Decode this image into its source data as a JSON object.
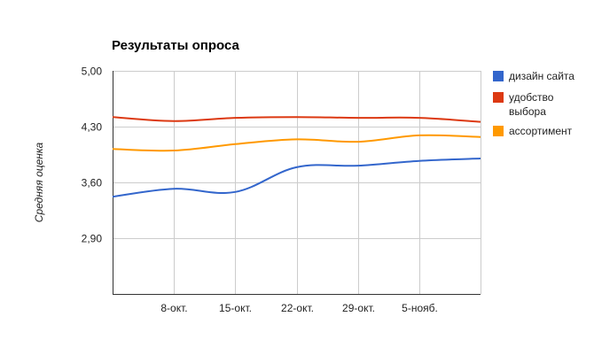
{
  "chart_data": {
    "type": "line",
    "title": "Результаты опроса",
    "ylabel": "Средняя оценка",
    "xlabel": "",
    "ylim": [
      2.2,
      5.0
    ],
    "yticks": [
      "5,00",
      "4,30",
      "3,60",
      "2,90"
    ],
    "ytick_values": [
      5.0,
      4.3,
      3.6,
      2.9
    ],
    "xlim": [
      0,
      6
    ],
    "xtick_labels": [
      "8-окт.",
      "15-окт.",
      "22-окт.",
      "29-окт.",
      "5-нояб."
    ],
    "xtick_positions": [
      1,
      2,
      3,
      4,
      5
    ],
    "x": [
      0,
      1,
      2,
      3,
      4,
      5,
      6
    ],
    "grid": true,
    "legend_position": "right",
    "series": [
      {
        "name": "дизайн сайта",
        "color": "#3366cc",
        "values": [
          3.42,
          3.52,
          3.48,
          3.79,
          3.81,
          3.87,
          3.9
        ]
      },
      {
        "name": "удобство выбора",
        "color": "#dc3912",
        "values": [
          4.42,
          4.37,
          4.41,
          4.42,
          4.41,
          4.41,
          4.36
        ]
      },
      {
        "name": "ассортимент",
        "color": "#ff9900",
        "values": [
          4.02,
          4.0,
          4.08,
          4.14,
          4.11,
          4.19,
          4.17
        ]
      }
    ]
  }
}
